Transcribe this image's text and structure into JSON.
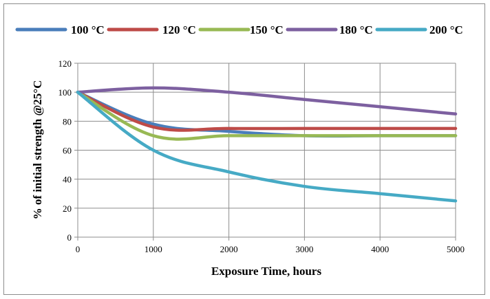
{
  "chart_data": {
    "type": "line",
    "title": "",
    "xlabel": "Exposure Time, hours",
    "ylabel": "% of initial strength @25°C",
    "xlim": [
      0,
      5000
    ],
    "ylim": [
      0,
      120
    ],
    "x_ticks": [
      0,
      1000,
      2000,
      3000,
      4000,
      5000
    ],
    "y_ticks": [
      0,
      20,
      40,
      60,
      80,
      100,
      120
    ],
    "grid": true,
    "legend_position": "top",
    "x": [
      0,
      1000,
      2000,
      3000,
      4000,
      5000
    ],
    "series": [
      {
        "name": "100 °C",
        "color": "#4a7ebb",
        "values": [
          100,
          78,
          73,
          70,
          70,
          70
        ]
      },
      {
        "name": "120 °C",
        "color": "#be4b48",
        "values": [
          100,
          76,
          75,
          75,
          75,
          75
        ]
      },
      {
        "name": "150 °C",
        "color": "#98b954",
        "values": [
          100,
          70,
          70,
          70,
          70,
          70
        ]
      },
      {
        "name": "180 °C",
        "color": "#7d60a0",
        "values": [
          100,
          103,
          100,
          95,
          90,
          85
        ]
      },
      {
        "name": "200 °C",
        "color": "#46aac5",
        "values": [
          100,
          60,
          45,
          35,
          30,
          25
        ]
      }
    ]
  }
}
